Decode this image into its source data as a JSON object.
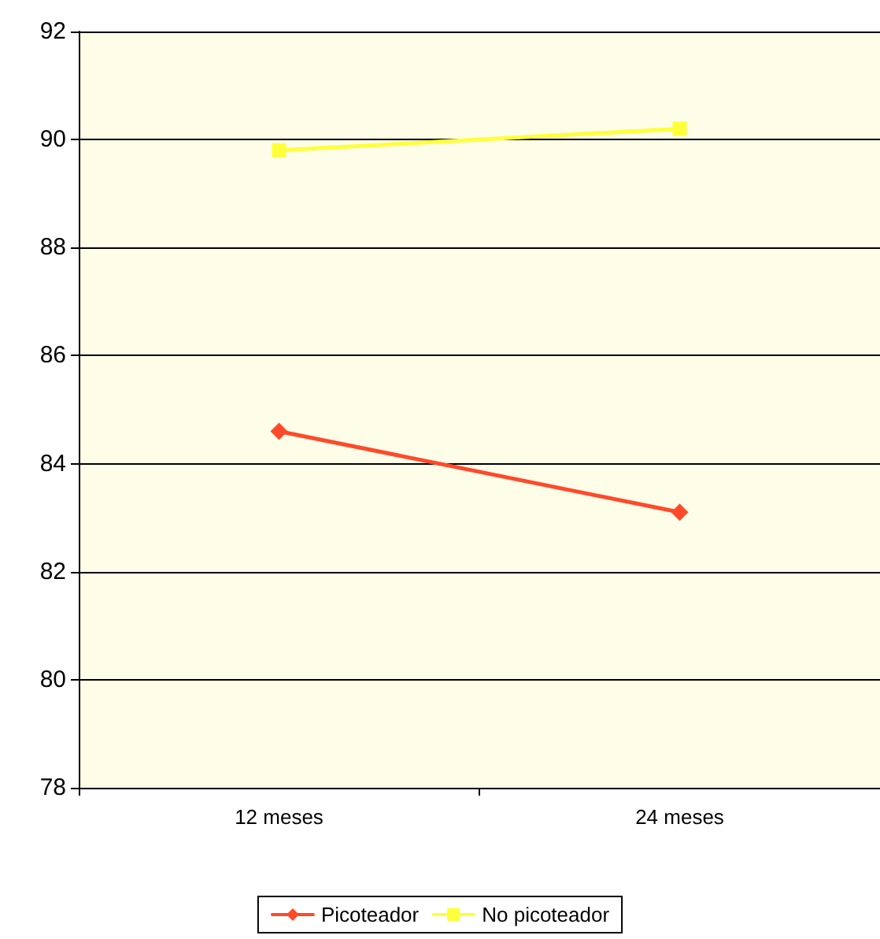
{
  "chart_data": {
    "type": "line",
    "categories": [
      "12 meses",
      "24 meses"
    ],
    "series": [
      {
        "name": "Picoteador",
        "color": "#ff4a2a",
        "marker": "diamond",
        "values": [
          84.6,
          83.1
        ]
      },
      {
        "name": "No picoteador",
        "color": "#ffff3a",
        "marker": "square",
        "values": [
          89.8,
          90.2
        ]
      }
    ],
    "ylim": [
      78,
      92
    ],
    "yticks": [
      78,
      80,
      82,
      84,
      86,
      88,
      90,
      92
    ],
    "grid": "y",
    "legend": "bottom",
    "line_style": "solid"
  }
}
